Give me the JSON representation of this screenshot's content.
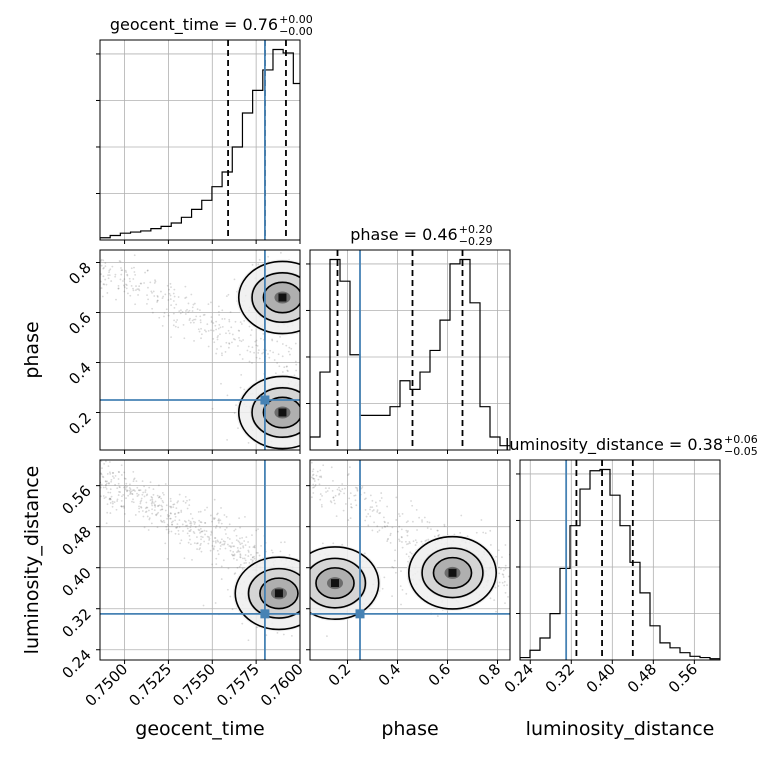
{
  "chart_data": {
    "type": "corner",
    "parameters": [
      "geocent_time",
      "phase",
      "luminosity_distance"
    ],
    "truth": {
      "geocent_time": 0.758,
      "phase": 0.25,
      "luminosity_distance": 0.31
    },
    "truth_color": "#4682b4",
    "grid": true,
    "titles": [
      {
        "text": "geocent_time = 0.76",
        "plus": "+0.00",
        "minus": "−0.00"
      },
      {
        "text": "phase = 0.46",
        "plus": "+0.20",
        "minus": "−0.29"
      },
      {
        "text": "luminosity_distance = 0.38",
        "plus": "+0.06",
        "minus": "−0.05"
      }
    ],
    "axes": {
      "geocent_time": {
        "range": [
          0.7486,
          0.76
        ],
        "ticks": [
          0.75,
          0.7525,
          0.755,
          0.7575,
          0.76
        ],
        "tick_labels": [
          "0.7500",
          "0.7525",
          "0.7550",
          "0.7575",
          "0.7600"
        ]
      },
      "phase": {
        "range": [
          0.05,
          0.85
        ],
        "ticks": [
          0.2,
          0.4,
          0.6,
          0.8
        ],
        "tick_labels": [
          "0.2",
          "0.4",
          "0.6",
          "0.8"
        ]
      },
      "luminosity_distance": {
        "range": [
          0.22,
          0.61
        ],
        "ticks": [
          0.24,
          0.32,
          0.4,
          0.48,
          0.56
        ],
        "tick_labels": [
          "0.24",
          "0.32",
          "0.40",
          "0.48",
          "0.56"
        ]
      }
    },
    "histograms": {
      "geocent_time": {
        "bin_edges": [
          0.7486,
          0.74918,
          0.74976,
          0.75034,
          0.75092,
          0.7515,
          0.75208,
          0.75266,
          0.75324,
          0.75382,
          0.7544,
          0.75498,
          0.75556,
          0.75614,
          0.75672,
          0.7573,
          0.75788,
          0.75846,
          0.75904,
          0.75962,
          0.7602
        ],
        "counts": [
          2,
          4,
          6,
          7,
          8,
          10,
          12,
          15,
          20,
          27,
          35,
          47,
          60,
          82,
          112,
          132,
          150,
          168,
          165,
          138
        ],
        "quantiles": [
          0.7559,
          0.758,
          0.7592
        ]
      },
      "phase": {
        "bin_edges": [
          0.05,
          0.09,
          0.13,
          0.17,
          0.21,
          0.25,
          0.29,
          0.33,
          0.37,
          0.41,
          0.45,
          0.49,
          0.53,
          0.57,
          0.61,
          0.65,
          0.69,
          0.73,
          0.77,
          0.81,
          0.85
        ],
        "counts": [
          15,
          90,
          220,
          195,
          110,
          40,
          40,
          40,
          50,
          80,
          70,
          90,
          115,
          150,
          215,
          220,
          170,
          50,
          15,
          5
        ],
        "quantiles": [
          0.16,
          0.46,
          0.66
        ]
      },
      "luminosity_distance": {
        "bin_edges": [
          0.22,
          0.2395,
          0.259,
          0.2785,
          0.298,
          0.3175,
          0.337,
          0.3565,
          0.376,
          0.3955,
          0.415,
          0.4345,
          0.454,
          0.4735,
          0.493,
          0.5125,
          0.532,
          0.5515,
          0.571,
          0.5905,
          0.61
        ],
        "counts": [
          2,
          8,
          18,
          38,
          75,
          110,
          140,
          155,
          156,
          135,
          110,
          80,
          55,
          28,
          14,
          10,
          6,
          3,
          2,
          1
        ],
        "quantiles": [
          0.33,
          0.38,
          0.44
        ]
      }
    },
    "density_panels": [
      {
        "x": "geocent_time",
        "y": "phase",
        "peaks": [
          [
            0.759,
            0.66
          ],
          [
            0.759,
            0.2
          ]
        ],
        "contour_levels": 3
      },
      {
        "x": "geocent_time",
        "y": "luminosity_distance",
        "peaks": [
          [
            0.7588,
            0.35
          ]
        ],
        "contour_levels": 3
      },
      {
        "x": "phase",
        "y": "luminosity_distance",
        "peaks": [
          [
            0.15,
            0.37
          ],
          [
            0.62,
            0.39
          ]
        ],
        "contour_levels": 3
      }
    ]
  }
}
